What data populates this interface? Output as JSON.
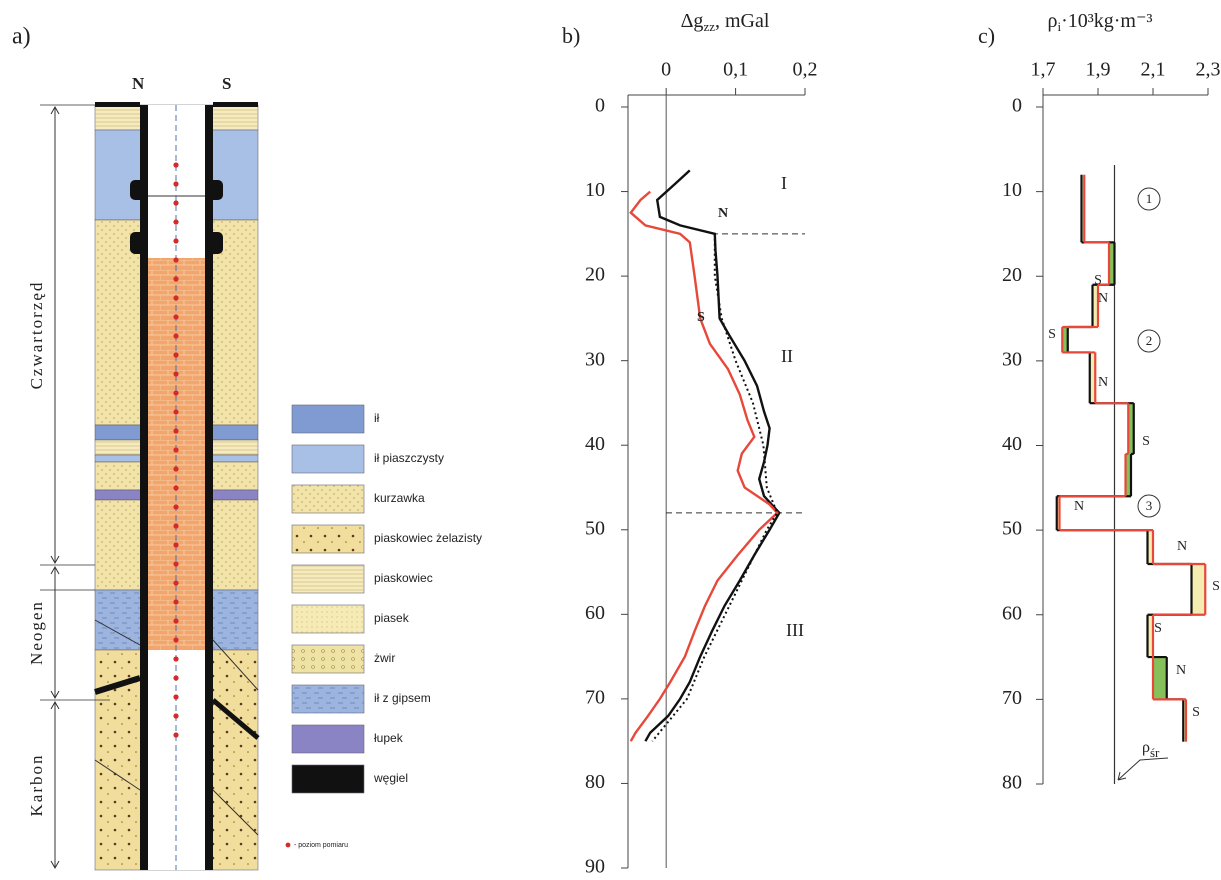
{
  "diagram": {
    "label": "a)",
    "wall_labels": [
      "N",
      "S"
    ],
    "periods": [
      "Czwartorzęd",
      "Neogen",
      "Karbon"
    ],
    "legend": [
      {
        "label": "ił",
        "color": "#7f9bd1"
      },
      {
        "label": "ił piaszczysty",
        "color": "#a8bfe6"
      },
      {
        "label": "kurzawka",
        "color": "#f2e3a8"
      },
      {
        "label": "piaskowiec żelazisty",
        "color": "#f1dd9c"
      },
      {
        "label": "piaskowiec",
        "color": "#f5ebbf"
      },
      {
        "label": "piasek",
        "color": "#f6eab5"
      },
      {
        "label": "żwir",
        "color": "#eee3a5"
      },
      {
        "label": "ił z gipsem",
        "color": "#9db5de"
      },
      {
        "label": "łupek",
        "color": "#8a84c4"
      },
      {
        "label": "węgiel",
        "color": "#111111"
      }
    ],
    "note": "- poziom pomiaru"
  },
  "chart_data": [
    {
      "type": "line",
      "panel_label": "b)",
      "x_label": {
        "symbol": "Δg",
        "subscript": "zz",
        "unit": ", mGal"
      },
      "xlim": [
        -0.055,
        0.2
      ],
      "xticks": [
        0,
        {
          "value": 0.1,
          "label": "0,1"
        },
        {
          "value": 0.2,
          "label": "0,2"
        }
      ],
      "ylim": [
        0,
        90
      ],
      "yticks": [
        0,
        10,
        20,
        30,
        40,
        50,
        60,
        70,
        80,
        90
      ],
      "y_inverted": true,
      "zero_line": true,
      "series": [
        {
          "name": "N",
          "color": "#111111",
          "style": "solid",
          "depth": [
            7.5,
            9,
            11,
            13,
            14,
            15,
            17,
            20,
            25,
            27,
            30,
            33,
            36,
            38,
            40,
            42,
            44,
            46,
            48,
            50,
            53,
            56,
            59,
            62,
            65,
            68,
            70,
            72,
            74,
            75
          ],
          "values": [
            0.034,
            0.014,
            -0.013,
            -0.009,
            0.02,
            0.07,
            0.071,
            0.074,
            0.077,
            0.091,
            0.113,
            0.131,
            0.141,
            0.149,
            0.146,
            0.141,
            0.134,
            0.141,
            0.163,
            0.149,
            0.127,
            0.106,
            0.084,
            0.066,
            0.049,
            0.034,
            0.02,
            0.003,
            -0.023,
            -0.03
          ]
        },
        {
          "name": "S",
          "color": "#e8483a",
          "style": "solid",
          "depth": [
            10,
            11,
            12.5,
            14,
            15,
            16,
            20,
            25,
            28,
            31,
            34,
            37,
            39,
            41,
            43,
            45,
            47,
            48,
            50,
            53,
            56,
            59,
            62,
            65,
            68,
            70,
            72,
            74,
            75
          ],
          "values": [
            -0.023,
            -0.037,
            -0.051,
            -0.03,
            0.02,
            0.034,
            0.041,
            0.049,
            0.063,
            0.089,
            0.106,
            0.117,
            0.127,
            0.109,
            0.103,
            0.113,
            0.149,
            0.16,
            0.134,
            0.103,
            0.074,
            0.056,
            0.041,
            0.027,
            0.006,
            -0.009,
            -0.026,
            -0.044,
            -0.051
          ]
        },
        {
          "color": "#111111",
          "style": "dotted",
          "depth": [
            15,
            20,
            25,
            30,
            35,
            40,
            45,
            48,
            50,
            55,
            60,
            65,
            70,
            75
          ],
          "values": [
            0.07,
            0.07,
            0.08,
            0.1,
            0.125,
            0.14,
            0.145,
            0.16,
            0.145,
            0.115,
            0.085,
            0.055,
            0.03,
            -0.02
          ]
        }
      ],
      "reference_lines": [
        15,
        48
      ],
      "annotations": [
        "I",
        "II",
        "III"
      ]
    },
    {
      "type": "step",
      "panel_label": "c)",
      "x_label": {
        "symbol": "ρ",
        "subscript": "i",
        "unit": "·10³kg·m⁻³"
      },
      "xlim": [
        1.7,
        2.3
      ],
      "xticks": [
        {
          "value": 1.7,
          "label": "1,7"
        },
        {
          "value": 1.9,
          "label": "1,9"
        },
        {
          "value": 2.1,
          "label": "2,1"
        },
        {
          "value": 2.3,
          "label": "2,3"
        }
      ],
      "ylim": [
        0,
        80
      ],
      "yticks": [
        0,
        10,
        20,
        30,
        40,
        50,
        60,
        70,
        80
      ],
      "y_inverted": true,
      "boundaries": [
        8,
        16,
        21,
        26,
        29,
        35,
        41,
        46,
        50,
        54,
        60,
        65,
        70,
        75
      ],
      "series": [
        {
          "name": "N",
          "color": "#111111",
          "values": [
            1.84,
            1.96,
            1.88,
            1.79,
            1.87,
            2.03,
            2.02,
            1.75,
            2.08,
            2.24,
            2.08,
            2.15,
            2.21
          ]
        },
        {
          "name": "S",
          "color": "#e8483a",
          "values": [
            1.85,
            1.94,
            1.9,
            1.77,
            1.89,
            2.01,
            2.0,
            1.76,
            2.1,
            2.29,
            2.1,
            2.1,
            2.22
          ]
        }
      ],
      "mean": {
        "symbol": "ρ",
        "subscript": "śr",
        "value": 1.96
      },
      "step_labels": [
        "S",
        "N",
        "S",
        "N",
        "S",
        "N",
        "N",
        "S",
        "S",
        "N",
        "S"
      ],
      "zones": [
        "1",
        "2",
        "3"
      ]
    }
  ]
}
